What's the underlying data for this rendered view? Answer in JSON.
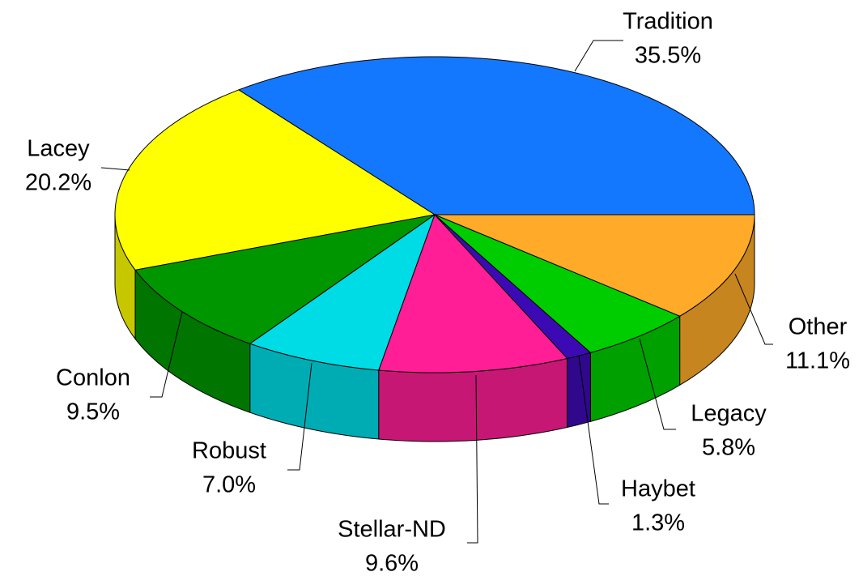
{
  "chart_data": {
    "type": "pie3d",
    "categories": [
      "Tradition",
      "Lacey",
      "Conlon",
      "Robust",
      "Stellar-ND",
      "Haybet",
      "Legacy",
      "Other"
    ],
    "values": [
      35.5,
      20.2,
      9.5,
      7.0,
      9.6,
      1.3,
      5.8,
      11.1
    ],
    "value_labels": [
      "35.5%",
      "20.2%",
      "9.5%",
      "7.0%",
      "9.6%",
      "1.3%",
      "5.8%",
      "11.1%"
    ],
    "colors": [
      "#1478ff",
      "#ffff00",
      "#009600",
      "#00dce6",
      "#ff1e96",
      "#3c0ab4",
      "#00cd00",
      "#ffaa28"
    ]
  }
}
